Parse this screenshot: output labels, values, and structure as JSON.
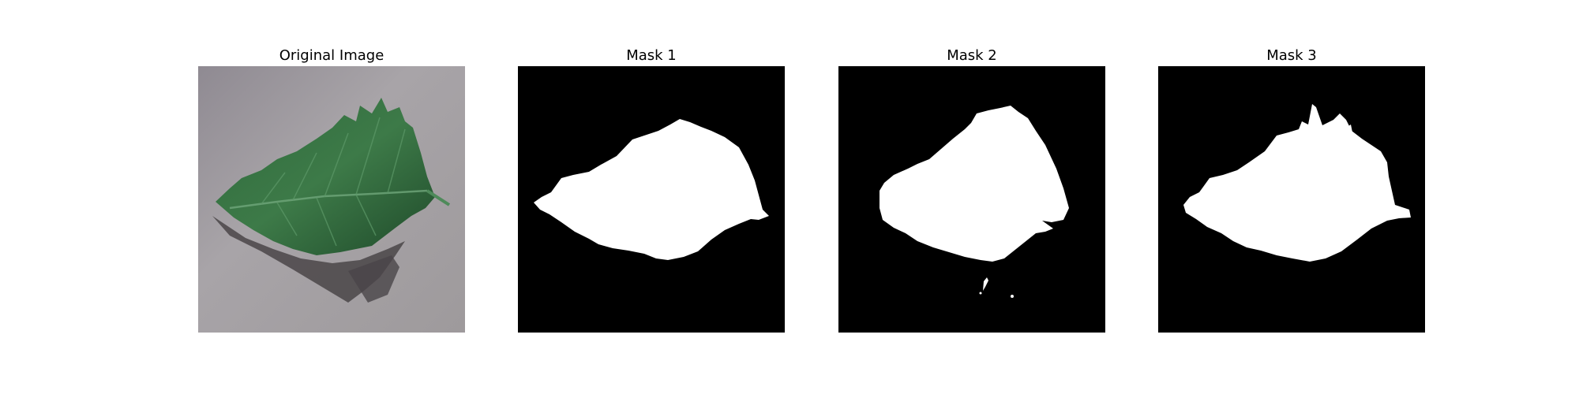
{
  "figure": {
    "panels": [
      {
        "title": "Original Image"
      },
      {
        "title": "Mask 1"
      },
      {
        "title": "Mask 2"
      },
      {
        "title": "Mask 3"
      }
    ]
  },
  "colors": {
    "background": "#ffffff",
    "mask_background": "#000000",
    "mask_foreground": "#ffffff",
    "surface": "#9e9a9e",
    "leaf_dark": "#1f4a2a",
    "leaf_mid": "#2f6a3c",
    "leaf_light": "#4e8a5a",
    "shadow": "#4a4548"
  }
}
